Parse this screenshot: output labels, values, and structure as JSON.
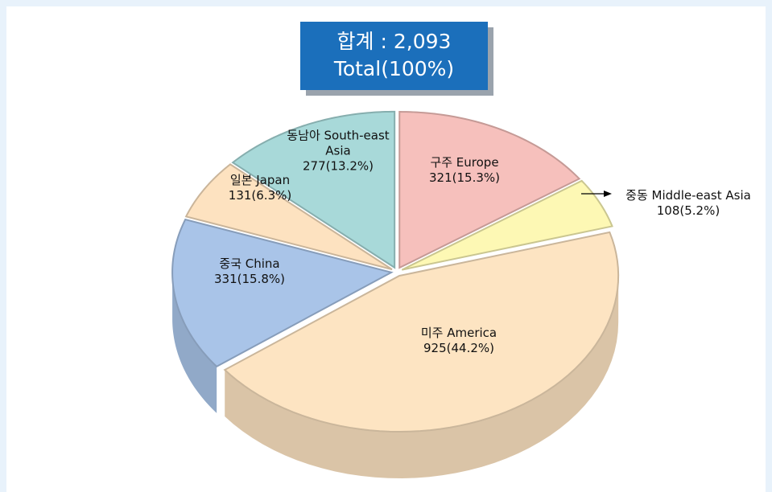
{
  "chart_data": {
    "type": "pie",
    "title": "합계 : 2,093",
    "subtitle": "Total(100%)",
    "categories": [
      "구주 Europe",
      "중동 Middle-east Asia",
      "미주 America",
      "중국 China",
      "일본 Japan",
      "동남아 South-east Asia"
    ],
    "values": [
      321,
      108,
      925,
      331,
      131,
      277
    ],
    "value_labels": [
      "321(15.3%)",
      "108(5.2%)",
      "925(44.2%)",
      "331(15.8%)",
      "131(6.3%)",
      "277(13.2%)"
    ],
    "colors": [
      "#f6c0bc",
      "#fdf8b4",
      "#fde4c2",
      "#a9c4e8",
      "#fde2c0",
      "#a8d9d9"
    ]
  }
}
